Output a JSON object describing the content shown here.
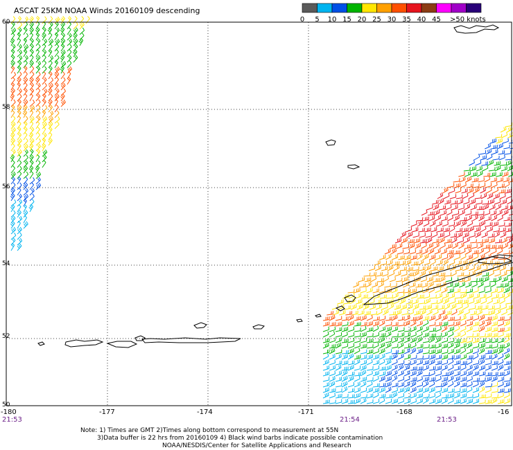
{
  "title": "ASCAT 25KM NOAA Winds 20160109 descending",
  "legend": {
    "colors": [
      "#5a5a5a",
      "#00b4f0",
      "#0050e6",
      "#00b400",
      "#ffe600",
      "#ffa000",
      "#ff5000",
      "#e6141e",
      "#8c3c14",
      "#ff00ff",
      "#a000c8",
      "#280078"
    ],
    "labels": [
      "0",
      "5",
      "10",
      "15",
      "20",
      "25",
      "30",
      "35",
      "40",
      "45",
      ">50 knots"
    ]
  },
  "map": {
    "lon_labels": [
      "-180",
      "-177",
      "-174",
      "-171",
      "-168",
      "-16"
    ],
    "lat_labels": [
      "60",
      "58",
      "56",
      "54",
      "52",
      "50"
    ],
    "times": [
      "21:53",
      "21:54",
      "21:53"
    ]
  },
  "notes": {
    "line1": "Note: 1) Times are GMT 2)Times along bottom correspond to measurement at 55N",
    "line2": "3)Data buffer is 22 hrs from 20160109 4) Black wind barbs indicate possible contamination",
    "line3": "NOAA/NESDIS/Center for Satellite Applications and Research"
  }
}
